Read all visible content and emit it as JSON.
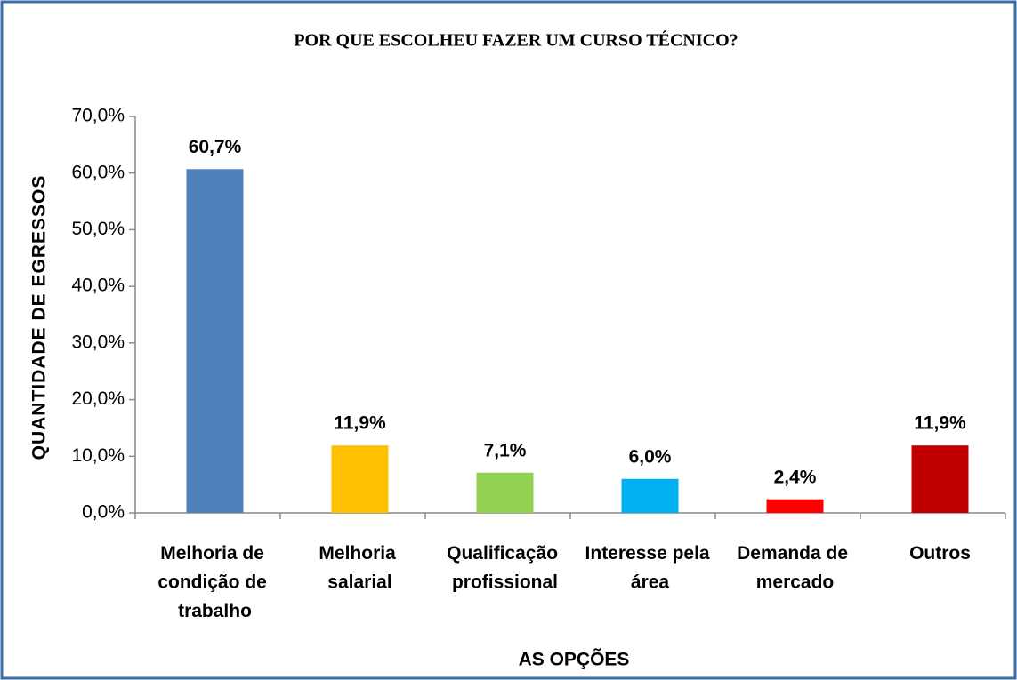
{
  "chart_data": {
    "type": "bar",
    "title": "POR QUE ESCOLHEU FAZER UM CURSO TÉCNICO?",
    "ylabel": "QUANTIDADE DE EGRESSOS",
    "xlabel": "AS OPÇÕES",
    "categories": [
      "Melhoria de condição de trabalho",
      "Melhoria salarial",
      "Qualificação profissional",
      "Interesse pela área",
      "Demanda de mercado",
      "Outros"
    ],
    "values": [
      60.7,
      11.9,
      7.1,
      6.0,
      2.4,
      11.9
    ],
    "value_labels": [
      "60,7%",
      "11,9%",
      "7,1%",
      "6,0%",
      "2,4%",
      "11,9%"
    ],
    "colors": [
      "#4f81bd",
      "#ffc000",
      "#92d050",
      "#00b0f0",
      "#ff0000",
      "#c00000"
    ],
    "ylim": [
      0,
      70
    ],
    "yticks": [
      {
        "value": 0,
        "label": "0,0%"
      },
      {
        "value": 10,
        "label": "10,0%"
      },
      {
        "value": 20,
        "label": "20,0%"
      },
      {
        "value": 30,
        "label": "30,0%"
      },
      {
        "value": 40,
        "label": "40,0%"
      },
      {
        "value": 50,
        "label": "50,0%"
      },
      {
        "value": 60,
        "label": "60,0%"
      },
      {
        "value": 70,
        "label": "70,0%"
      }
    ],
    "grid": false
  }
}
